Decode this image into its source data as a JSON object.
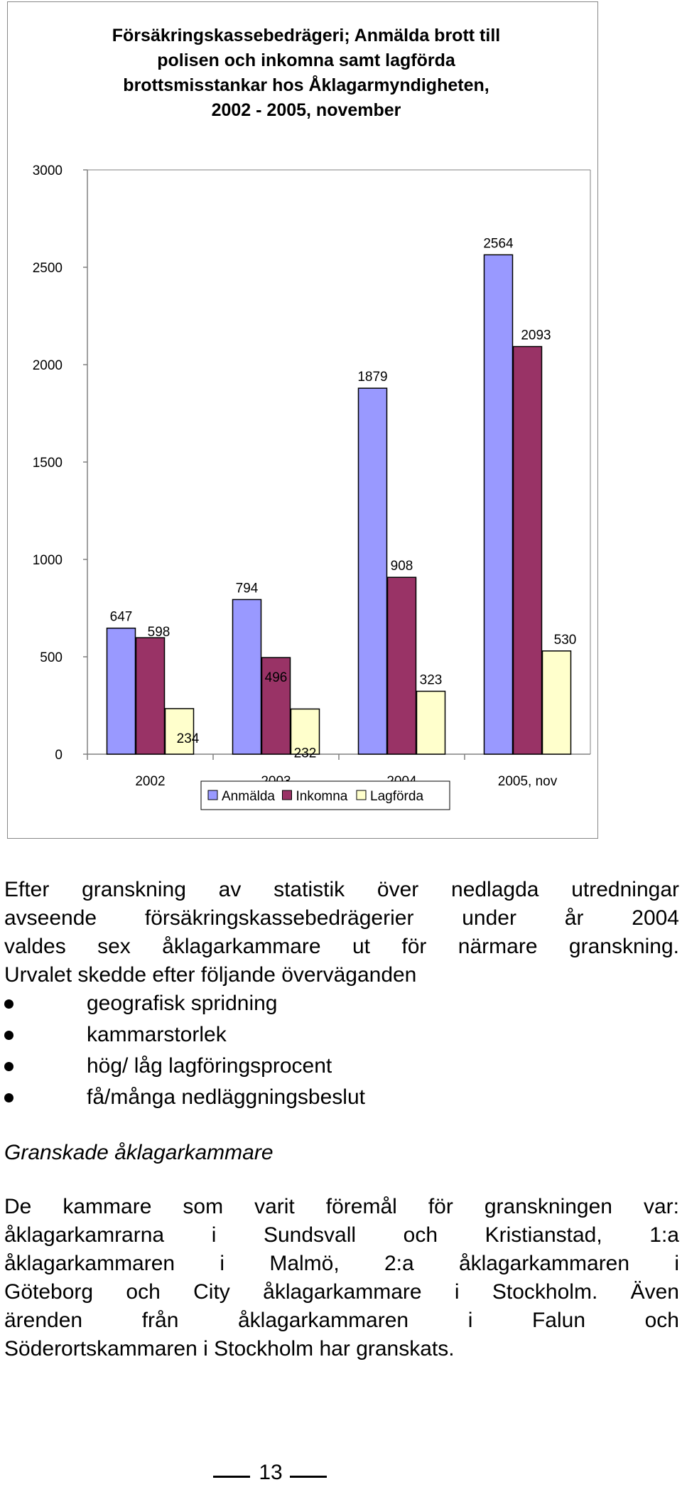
{
  "chart_data": {
    "type": "bar",
    "title": "Försäkringskassebedrägeri; Anmälda brott till polisen och inkomna samt lagförda brottsmisstankar hos Åklagarmyndigheten, 2002 - 2005, november",
    "title_lines": [
      "Försäkringskassebedrägeri; Anmälda brott till",
      "polisen och inkomna samt lagförda",
      "brottsmisstankar hos Åklagarmyndigheten,",
      "2002 - 2005, november"
    ],
    "categories": [
      "2002",
      "2003",
      "2004",
      "2005, nov"
    ],
    "series": [
      {
        "name": "Anmälda",
        "values": [
          647,
          794,
          1879,
          2564
        ],
        "color": "#9999ff"
      },
      {
        "name": "Inkomna",
        "values": [
          598,
          496,
          908,
          2093
        ],
        "color": "#993366"
      },
      {
        "name": "Lagförda",
        "values": [
          234,
          232,
          323,
          530
        ],
        "color": "#ffffcc"
      }
    ],
    "ylim": [
      0,
      3000
    ],
    "yticks": [
      0,
      500,
      1000,
      1500,
      2000,
      2500,
      3000
    ],
    "xlabel": "",
    "ylabel": "",
    "grid": false,
    "legend": "bottom"
  },
  "text": {
    "para1_lines": [
      "Efter granskning av statistik över nedlagda utredningar",
      "avseende försäkringskassebedrägerier under år 2004",
      "valdes sex åklagarkammare ut för närmare granskning.",
      "Urvalet skedde efter följande överväganden"
    ],
    "bullets": [
      "geografisk spridning",
      "kammarstorlek",
      "hög/ låg lagföringsprocent",
      "få/många nedläggningsbeslut"
    ],
    "subheading": "Granskade åklagarkammare",
    "para2_lines": [
      "De kammare som varit föremål för granskningen var:",
      "åklagarkamrarna i Sundsvall och Kristianstad, 1:a",
      "åklagarkammaren i Malmö, 2:a åklagarkammaren i",
      "Göteborg och City åklagarkammare i Stockholm. Även",
      "ärenden från åklagarkammaren i Falun och",
      "Söderortskammaren i Stockholm har granskats."
    ]
  },
  "footer": {
    "page_number": "13"
  }
}
